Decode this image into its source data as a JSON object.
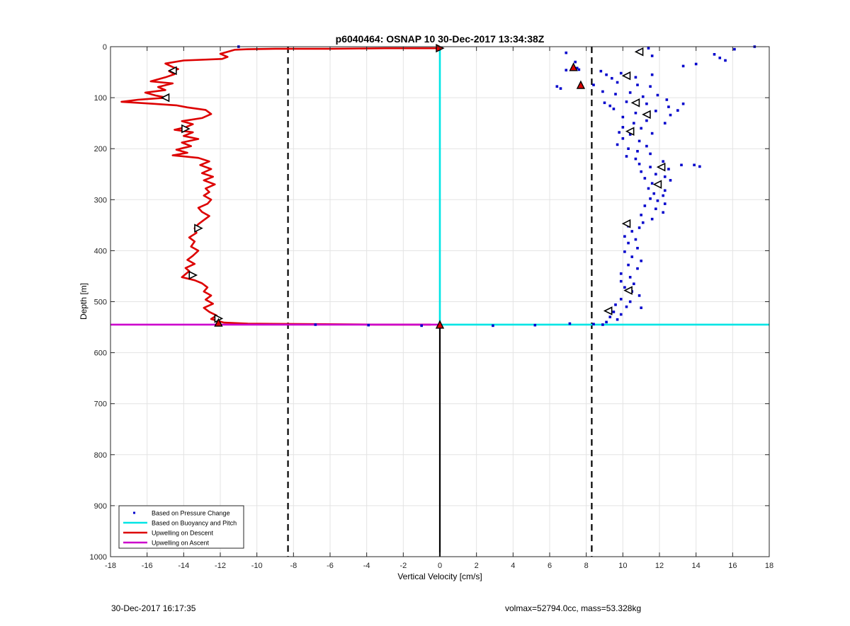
{
  "chart_data": {
    "type": "scatter",
    "title": "p6040464: OSNAP 10 30-Dec-2017 13:34:38Z",
    "xlabel": "Vertical Velocity [cm/s]",
    "ylabel": "Depth [m]",
    "xlim": [
      -18,
      18
    ],
    "ylim": [
      0,
      1000
    ],
    "y_reversed": true,
    "grid": true,
    "legend_position": "bottom-left",
    "xticks": [
      -18,
      -16,
      -14,
      -12,
      -10,
      -8,
      -6,
      -4,
      -2,
      0,
      2,
      4,
      6,
      8,
      10,
      12,
      14,
      16,
      18
    ],
    "yticks": [
      0,
      100,
      200,
      300,
      400,
      500,
      600,
      700,
      800,
      900,
      1000
    ],
    "colors": {
      "pressure": "#0000cc",
      "buoyancy": "#00e5e5",
      "descent": "#dd0000",
      "ascent": "#cc00cc",
      "reference_lines": "#000000"
    },
    "series": [
      {
        "name": "Based on Pressure Change",
        "style": "points",
        "points": [
          [
            17.2,
            0
          ],
          [
            16.1,
            5
          ],
          [
            15.0,
            15
          ],
          [
            15.3,
            22
          ],
          [
            15.6,
            27
          ],
          [
            14.0,
            34
          ],
          [
            13.3,
            38
          ],
          [
            11.6,
            18
          ],
          [
            10.9,
            8
          ],
          [
            11.4,
            3
          ],
          [
            6.9,
            12
          ],
          [
            7.4,
            30
          ],
          [
            7.5,
            42
          ],
          [
            7.6,
            45
          ],
          [
            6.9,
            46
          ],
          [
            8.8,
            48
          ],
          [
            9.1,
            55
          ],
          [
            9.9,
            52
          ],
          [
            9.4,
            62
          ],
          [
            10.7,
            60
          ],
          [
            11.6,
            55
          ],
          [
            9.7,
            70
          ],
          [
            10.8,
            75
          ],
          [
            11.5,
            78
          ],
          [
            8.4,
            75
          ],
          [
            8.9,
            88
          ],
          [
            9.6,
            93
          ],
          [
            6.4,
            78
          ],
          [
            6.6,
            82
          ],
          [
            10.4,
            90
          ],
          [
            11.1,
            98
          ],
          [
            11.9,
            95
          ],
          [
            10.2,
            108
          ],
          [
            12.4,
            104
          ],
          [
            9.0,
            110
          ],
          [
            9.3,
            116
          ],
          [
            11.3,
            112
          ],
          [
            12.5,
            118
          ],
          [
            13.3,
            112
          ],
          [
            13.0,
            125
          ],
          [
            9.5,
            122
          ],
          [
            10.7,
            130
          ],
          [
            11.8,
            126
          ],
          [
            12.6,
            134
          ],
          [
            10.0,
            138
          ],
          [
            11.3,
            145
          ],
          [
            12.3,
            150
          ],
          [
            10.6,
            150
          ],
          [
            10.0,
            158
          ],
          [
            11.0,
            160
          ],
          [
            9.8,
            168
          ],
          [
            10.4,
            172
          ],
          [
            11.6,
            170
          ],
          [
            10.0,
            180
          ],
          [
            10.9,
            185
          ],
          [
            9.7,
            192
          ],
          [
            11.3,
            195
          ],
          [
            10.3,
            200
          ],
          [
            10.8,
            205
          ],
          [
            11.5,
            210
          ],
          [
            10.2,
            215
          ],
          [
            10.7,
            220
          ],
          [
            12.2,
            225
          ],
          [
            10.9,
            230
          ],
          [
            13.2,
            232
          ],
          [
            13.9,
            232
          ],
          [
            14.2,
            235
          ],
          [
            11.5,
            236
          ],
          [
            12.5,
            240
          ],
          [
            11.0,
            245
          ],
          [
            11.8,
            250
          ],
          [
            12.3,
            255
          ],
          [
            11.2,
            258
          ],
          [
            12.6,
            262
          ],
          [
            11.6,
            268
          ],
          [
            12.0,
            272
          ],
          [
            11.4,
            278
          ],
          [
            12.3,
            282
          ],
          [
            11.7,
            288
          ],
          [
            12.2,
            292
          ],
          [
            11.5,
            298
          ],
          [
            11.9,
            302
          ],
          [
            12.3,
            308
          ],
          [
            11.2,
            312
          ],
          [
            11.8,
            318
          ],
          [
            12.2,
            325
          ],
          [
            11.0,
            330
          ],
          [
            11.6,
            338
          ],
          [
            11.1,
            345
          ],
          [
            10.3,
            352
          ],
          [
            10.9,
            355
          ],
          [
            10.5,
            362
          ],
          [
            10.1,
            372
          ],
          [
            10.7,
            378
          ],
          [
            10.3,
            385
          ],
          [
            10.8,
            395
          ],
          [
            10.1,
            402
          ],
          [
            10.5,
            412
          ],
          [
            11.0,
            420
          ],
          [
            10.3,
            428
          ],
          [
            10.8,
            435
          ],
          [
            9.9,
            445
          ],
          [
            10.4,
            452
          ],
          [
            9.9,
            460
          ],
          [
            10.6,
            465
          ],
          [
            10.1,
            472
          ],
          [
            10.5,
            480
          ],
          [
            10.9,
            488
          ],
          [
            9.9,
            495
          ],
          [
            10.4,
            500
          ],
          [
            9.6,
            506
          ],
          [
            10.2,
            510
          ],
          [
            11.0,
            512
          ],
          [
            9.5,
            520
          ],
          [
            9.9,
            525
          ],
          [
            9.3,
            530
          ],
          [
            9.7,
            535
          ],
          [
            9.1,
            540
          ],
          [
            8.9,
            545
          ],
          [
            8.4,
            544
          ],
          [
            7.1,
            543
          ],
          [
            5.2,
            546
          ],
          [
            2.9,
            547
          ],
          [
            -1.0,
            547
          ],
          [
            -3.9,
            546
          ],
          [
            -6.8,
            545
          ],
          [
            -12.1,
            541
          ],
          [
            -11.0,
            0
          ]
        ]
      },
      {
        "name": "Based on Buoyancy and Pitch",
        "style": "line",
        "points": [
          [
            0,
            0
          ],
          [
            0,
            545
          ],
          [
            18,
            545
          ]
        ]
      },
      {
        "name": "Upwelling on Descent",
        "style": "line",
        "points": [
          [
            0,
            3
          ],
          [
            -3,
            3
          ],
          [
            -6,
            4
          ],
          [
            -9,
            4
          ],
          [
            -10.5,
            5
          ],
          [
            -11.2,
            6
          ],
          [
            -11.5,
            9
          ],
          [
            -12.0,
            14
          ],
          [
            -11.6,
            20
          ],
          [
            -11.9,
            24
          ],
          [
            -14.0,
            27
          ],
          [
            -15.0,
            33
          ],
          [
            -14.6,
            40
          ],
          [
            -14.3,
            44
          ],
          [
            -14.8,
            48
          ],
          [
            -14.5,
            54
          ],
          [
            -15.0,
            60
          ],
          [
            -15.8,
            68
          ],
          [
            -14.6,
            72
          ],
          [
            -15.4,
            79
          ],
          [
            -15.0,
            85
          ],
          [
            -16.1,
            90
          ],
          [
            -15.5,
            96
          ],
          [
            -14.9,
            100
          ],
          [
            -16.5,
            104
          ],
          [
            -17.4,
            108
          ],
          [
            -15.6,
            112
          ],
          [
            -14.4,
            115
          ],
          [
            -13.8,
            119
          ],
          [
            -12.8,
            124
          ],
          [
            -12.5,
            132
          ],
          [
            -13.0,
            140
          ],
          [
            -14.1,
            146
          ],
          [
            -13.5,
            152
          ],
          [
            -13.9,
            158
          ],
          [
            -14.5,
            163
          ],
          [
            -13.5,
            168
          ],
          [
            -14.0,
            175
          ],
          [
            -13.2,
            181
          ],
          [
            -14.1,
            188
          ],
          [
            -13.6,
            195
          ],
          [
            -14.4,
            202
          ],
          [
            -13.8,
            208
          ],
          [
            -14.6,
            213
          ],
          [
            -13.2,
            218
          ],
          [
            -12.6,
            225
          ],
          [
            -13.1,
            232
          ],
          [
            -12.5,
            240
          ],
          [
            -13.0,
            248
          ],
          [
            -12.4,
            255
          ],
          [
            -12.9,
            262
          ],
          [
            -12.3,
            270
          ],
          [
            -12.8,
            278
          ],
          [
            -12.6,
            285
          ],
          [
            -12.9,
            292
          ],
          [
            -12.5,
            300
          ],
          [
            -12.7,
            308
          ],
          [
            -13.2,
            316
          ],
          [
            -13.0,
            324
          ],
          [
            -12.6,
            332
          ],
          [
            -12.9,
            340
          ],
          [
            -13.2,
            348
          ],
          [
            -13.4,
            356
          ],
          [
            -13.3,
            365
          ],
          [
            -13.7,
            374
          ],
          [
            -13.4,
            382
          ],
          [
            -13.6,
            392
          ],
          [
            -13.2,
            400
          ],
          [
            -13.5,
            410
          ],
          [
            -13.8,
            418
          ],
          [
            -13.4,
            426
          ],
          [
            -13.9,
            434
          ],
          [
            -13.7,
            440
          ],
          [
            -14.1,
            452
          ],
          [
            -13.4,
            458
          ],
          [
            -13.0,
            464
          ],
          [
            -12.7,
            472
          ],
          [
            -12.9,
            480
          ],
          [
            -12.5,
            488
          ],
          [
            -12.8,
            496
          ],
          [
            -12.4,
            504
          ],
          [
            -12.9,
            512
          ],
          [
            -12.6,
            520
          ],
          [
            -12.2,
            527
          ],
          [
            -12.5,
            534
          ],
          [
            -12.1,
            538
          ],
          [
            -11.8,
            541
          ],
          [
            -10.5,
            543
          ],
          [
            -7.0,
            544
          ],
          [
            -3.5,
            545
          ],
          [
            -0.5,
            545
          ]
        ]
      },
      {
        "name": "Upwelling on Ascent",
        "style": "line",
        "points": [
          [
            -18,
            545
          ],
          [
            0,
            545
          ]
        ]
      }
    ],
    "reference_lines": [
      {
        "axis": "x",
        "value": -8.3,
        "style": "dashed"
      },
      {
        "axis": "x",
        "value": 8.3,
        "style": "dashed"
      },
      {
        "axis": "x",
        "value": 0,
        "from": 545,
        "to": 1000,
        "style": "solid"
      }
    ],
    "markers": {
      "open_left": [
        [
          10.9,
          10
        ],
        [
          -14.6,
          47
        ],
        [
          10.2,
          57
        ],
        [
          -15.0,
          100
        ],
        [
          10.7,
          110
        ],
        [
          11.3,
          133
        ],
        [
          10.4,
          166
        ],
        [
          12.1,
          236
        ],
        [
          11.9,
          270
        ],
        [
          10.2,
          347
        ],
        [
          10.3,
          478
        ],
        [
          9.2,
          518
        ]
      ],
      "open_right": [
        [
          -13.9,
          161
        ],
        [
          -13.2,
          356
        ],
        [
          -13.5,
          448
        ],
        [
          -12.1,
          533
        ]
      ],
      "filled_up": [
        [
          7.3,
          40
        ],
        [
          7.7,
          75
        ],
        [
          0,
          545
        ],
        [
          -12.1,
          541
        ]
      ],
      "filled_right": [
        [
          0,
          3
        ]
      ]
    }
  },
  "footer": {
    "left_text": "30-Dec-2017 16:17:35",
    "right_text": "volmax=52794.0cc, mass=53.328kg"
  }
}
